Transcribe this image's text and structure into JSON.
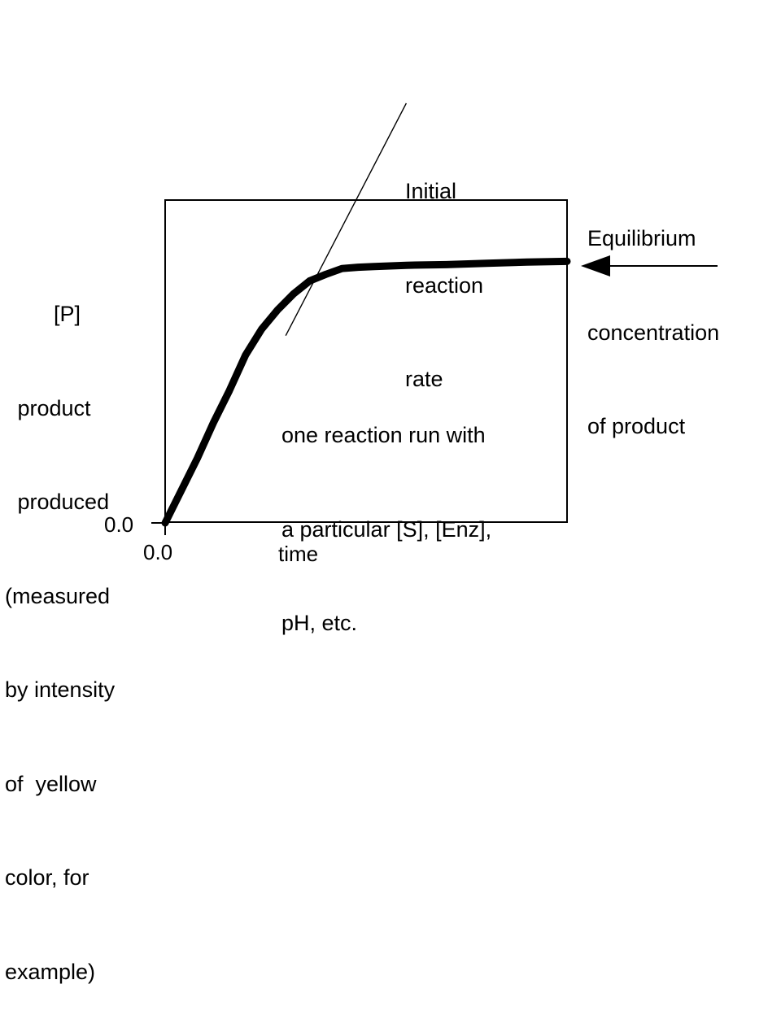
{
  "chart_data": {
    "type": "line",
    "title": "",
    "xlabel": "time",
    "ylabel_lines": [
      "[P]",
      " product",
      " produced",
      "(measured",
      "by intensity",
      "of  yellow",
      "color, for",
      "example)"
    ],
    "x_ticks": [
      {
        "label": "0.0",
        "value": 0
      }
    ],
    "y_ticks": [
      {
        "label": "0.0",
        "value": 0
      }
    ],
    "xlim": [
      0,
      100
    ],
    "ylim": [
      0,
      100
    ],
    "grid": false,
    "series": [
      {
        "x": [
          0,
          4,
          8,
          12,
          16,
          20,
          24,
          28,
          32,
          36,
          40,
          44,
          48,
          52,
          56,
          60,
          70,
          80,
          90,
          100
        ],
        "y": [
          0,
          10,
          20,
          31,
          41,
          52,
          60,
          66,
          71,
          75,
          77,
          78.8,
          79.2,
          79.4,
          79.6,
          79.8,
          80.0,
          80.4,
          80.8,
          81.0
        ]
      }
    ],
    "tangent_line": {
      "x": [
        30,
        60
      ],
      "y": [
        58,
        130
      ]
    },
    "annotations": {
      "initial_rate": [
        "Initial",
        "reaction",
        "rate"
      ],
      "equilibrium": [
        "Equilibrium",
        "concentration",
        "of product"
      ],
      "run_note": [
        "one reaction run with",
        "a particular [S], [Enz],",
        "pH, etc."
      ]
    }
  }
}
